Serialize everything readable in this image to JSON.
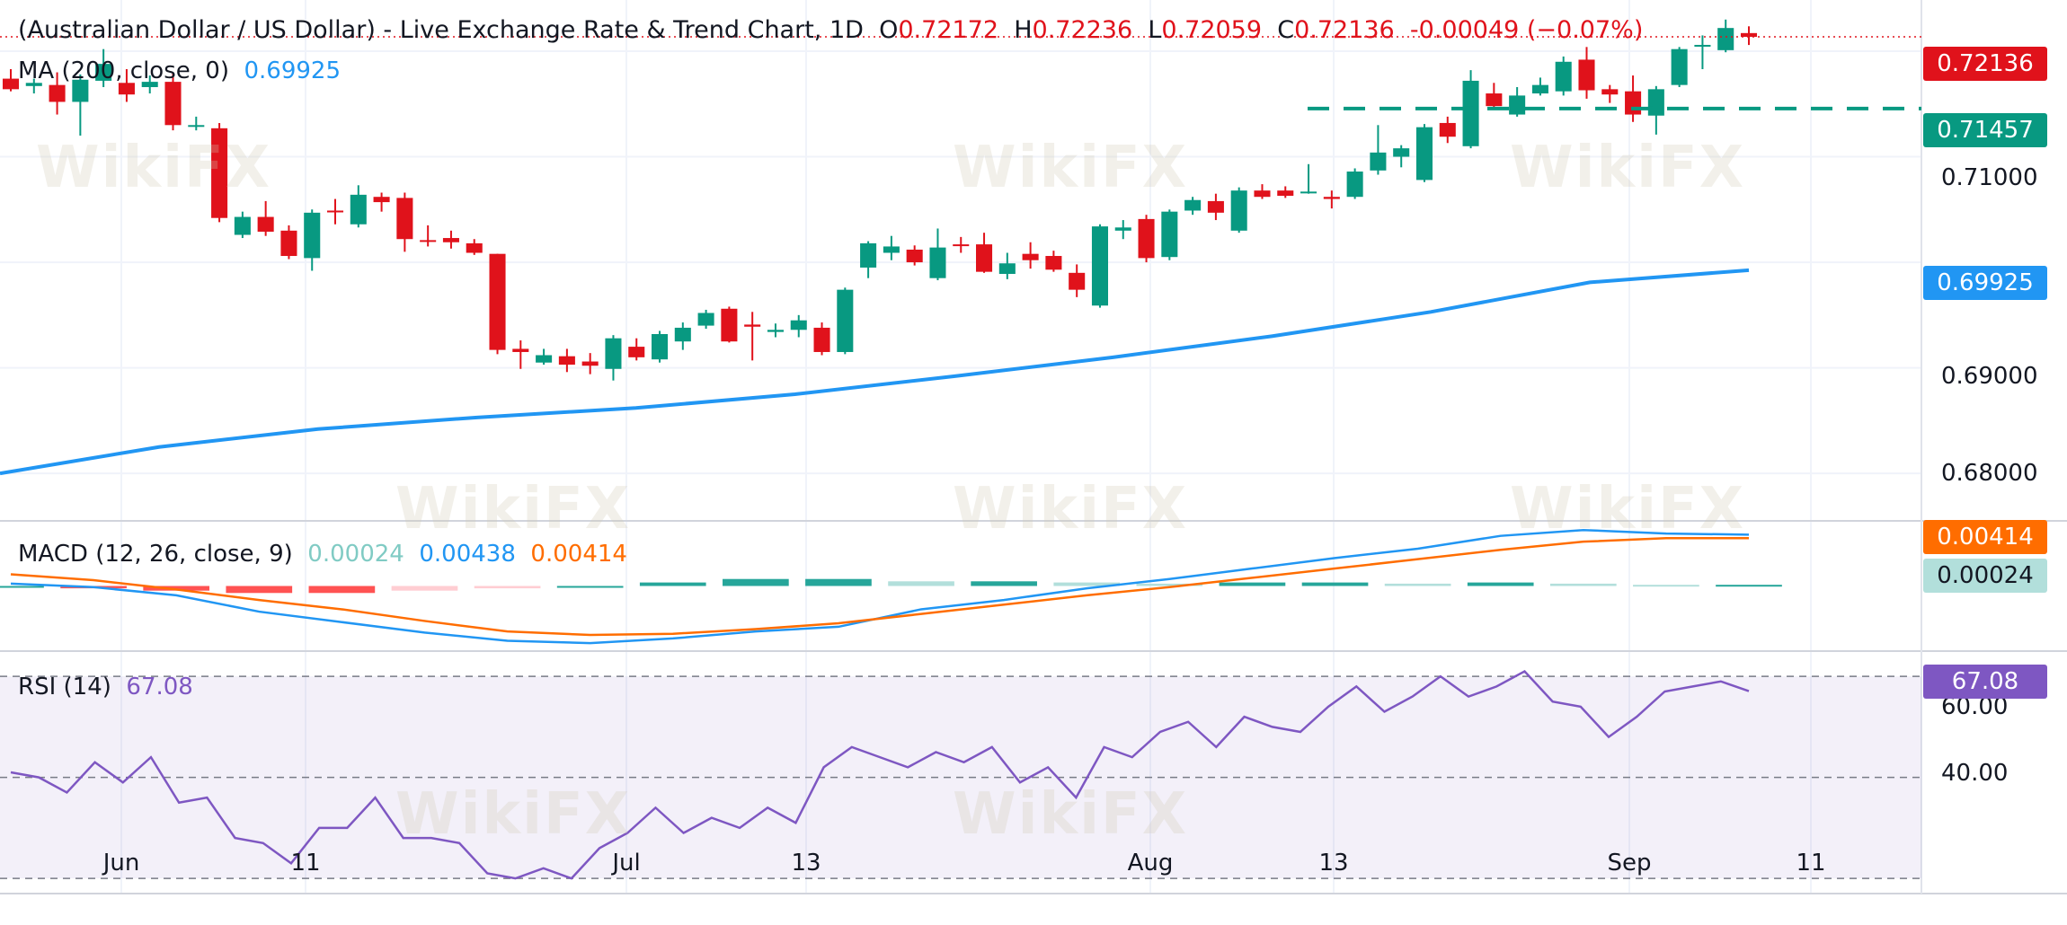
{
  "header": {
    "title": "(Australian Dollar / US Dollar) - Live Exchange Rate & Trend Chart, 1D",
    "o_label": "O",
    "o_value": "0.72172",
    "h_label": "H",
    "h_value": "0.72236",
    "l_label": "L",
    "l_value": "0.72059",
    "c_label": "C",
    "c_value": "0.72136",
    "change": "-0.00049 (−0.07%)"
  },
  "ma": {
    "label": "MA (200, close, 0)",
    "value": "0.69925"
  },
  "macd": {
    "label": "MACD (12, 26, close, 9)",
    "hist": "0.00024",
    "macd": "0.00438",
    "signal": "0.00414"
  },
  "rsi": {
    "label": "RSI (14)",
    "value": "67.08"
  },
  "price_tags": {
    "last": "0.72136",
    "level": "0.71457",
    "ma": "0.69925",
    "macd_signal": "0.00414",
    "macd_hist": "0.00024",
    "rsi": "67.08"
  },
  "watermark": "WikiFX",
  "colors": {
    "up": "#089981",
    "down": "#e0121b",
    "ma": "#2196f3",
    "macd": "#2196f3",
    "signal": "#ff6d00",
    "rsi": "#7e57c2",
    "level": "#089981"
  },
  "chart_data": [
    {
      "type": "candlestick",
      "title": "(Australian Dollar / US Dollar) - Live Exchange Rate & Trend Chart, 1D",
      "x_ticks": [
        "Jun",
        "11",
        "Jul",
        "13",
        "Aug",
        "13",
        "Sep",
        "11"
      ],
      "y_ticks": [
        "0.68000",
        "0.69000",
        "0.71000"
      ],
      "ylim": [
        0.6755,
        0.7223
      ],
      "horizontal_level": 0.71457,
      "last_price": 0.72136,
      "candles": [
        {
          "o": 0.7174,
          "h": 0.7183,
          "l": 0.7162,
          "c": 0.7164
        },
        {
          "o": 0.7167,
          "h": 0.7174,
          "l": 0.716,
          "c": 0.717
        },
        {
          "o": 0.7168,
          "h": 0.718,
          "l": 0.714,
          "c": 0.7152
        },
        {
          "o": 0.7152,
          "h": 0.7178,
          "l": 0.712,
          "c": 0.7173
        },
        {
          "o": 0.7172,
          "h": 0.7202,
          "l": 0.7166,
          "c": 0.7188
        },
        {
          "o": 0.717,
          "h": 0.7183,
          "l": 0.7152,
          "c": 0.7159
        },
        {
          "o": 0.7166,
          "h": 0.7177,
          "l": 0.716,
          "c": 0.7171
        },
        {
          "o": 0.7171,
          "h": 0.718,
          "l": 0.7125,
          "c": 0.713
        },
        {
          "o": 0.713,
          "h": 0.7138,
          "l": 0.7125,
          "c": 0.713
        },
        {
          "o": 0.7127,
          "h": 0.7132,
          "l": 0.7038,
          "c": 0.7042
        },
        {
          "o": 0.7026,
          "h": 0.7048,
          "l": 0.7023,
          "c": 0.7043
        },
        {
          "o": 0.7043,
          "h": 0.7058,
          "l": 0.7025,
          "c": 0.7029
        },
        {
          "o": 0.703,
          "h": 0.7035,
          "l": 0.7003,
          "c": 0.7006
        },
        {
          "o": 0.7004,
          "h": 0.705,
          "l": 0.6992,
          "c": 0.7047
        },
        {
          "o": 0.7049,
          "h": 0.706,
          "l": 0.7036,
          "c": 0.7048
        },
        {
          "o": 0.7036,
          "h": 0.7073,
          "l": 0.7033,
          "c": 0.7064
        },
        {
          "o": 0.7062,
          "h": 0.7066,
          "l": 0.7048,
          "c": 0.7057
        },
        {
          "o": 0.7061,
          "h": 0.7066,
          "l": 0.701,
          "c": 0.7022
        },
        {
          "o": 0.7021,
          "h": 0.7035,
          "l": 0.7015,
          "c": 0.702
        },
        {
          "o": 0.7023,
          "h": 0.703,
          "l": 0.7013,
          "c": 0.7019
        },
        {
          "o": 0.7018,
          "h": 0.7022,
          "l": 0.7007,
          "c": 0.7009
        },
        {
          "o": 0.7008,
          "h": 0.7008,
          "l": 0.6913,
          "c": 0.6917
        },
        {
          "o": 0.6918,
          "h": 0.6926,
          "l": 0.6899,
          "c": 0.6915
        },
        {
          "o": 0.6905,
          "h": 0.6918,
          "l": 0.6903,
          "c": 0.6912
        },
        {
          "o": 0.6911,
          "h": 0.6918,
          "l": 0.6896,
          "c": 0.6903
        },
        {
          "o": 0.6906,
          "h": 0.6914,
          "l": 0.6894,
          "c": 0.6902
        },
        {
          "o": 0.6899,
          "h": 0.6931,
          "l": 0.6888,
          "c": 0.6928
        },
        {
          "o": 0.692,
          "h": 0.6928,
          "l": 0.6907,
          "c": 0.691
        },
        {
          "o": 0.6908,
          "h": 0.6935,
          "l": 0.6905,
          "c": 0.6932
        },
        {
          "o": 0.6925,
          "h": 0.6943,
          "l": 0.6917,
          "c": 0.6938
        },
        {
          "o": 0.694,
          "h": 0.6955,
          "l": 0.6937,
          "c": 0.6952
        },
        {
          "o": 0.6956,
          "h": 0.6958,
          "l": 0.6924,
          "c": 0.6925
        },
        {
          "o": 0.6941,
          "h": 0.6953,
          "l": 0.6907,
          "c": 0.6939
        },
        {
          "o": 0.6934,
          "h": 0.6942,
          "l": 0.6929,
          "c": 0.6936
        },
        {
          "o": 0.6936,
          "h": 0.695,
          "l": 0.6929,
          "c": 0.6945
        },
        {
          "o": 0.6938,
          "h": 0.6943,
          "l": 0.6912,
          "c": 0.6915
        },
        {
          "o": 0.6915,
          "h": 0.6976,
          "l": 0.6913,
          "c": 0.6974
        },
        {
          "o": 0.6995,
          "h": 0.702,
          "l": 0.6985,
          "c": 0.7018
        },
        {
          "o": 0.7009,
          "h": 0.7025,
          "l": 0.7002,
          "c": 0.7015
        },
        {
          "o": 0.7012,
          "h": 0.7016,
          "l": 0.6997,
          "c": 0.7
        },
        {
          "o": 0.6985,
          "h": 0.7032,
          "l": 0.6983,
          "c": 0.7014
        },
        {
          "o": 0.7017,
          "h": 0.7024,
          "l": 0.7009,
          "c": 0.7016
        },
        {
          "o": 0.7017,
          "h": 0.7028,
          "l": 0.699,
          "c": 0.6991
        },
        {
          "o": 0.6989,
          "h": 0.7009,
          "l": 0.6984,
          "c": 0.6999
        },
        {
          "o": 0.7008,
          "h": 0.7019,
          "l": 0.6994,
          "c": 0.7002
        },
        {
          "o": 0.7006,
          "h": 0.7011,
          "l": 0.6991,
          "c": 0.6993
        },
        {
          "o": 0.699,
          "h": 0.6998,
          "l": 0.6967,
          "c": 0.6974
        },
        {
          "o": 0.6959,
          "h": 0.7036,
          "l": 0.6957,
          "c": 0.7034
        },
        {
          "o": 0.703,
          "h": 0.704,
          "l": 0.7022,
          "c": 0.7033
        },
        {
          "o": 0.7041,
          "h": 0.7045,
          "l": 0.7,
          "c": 0.7004
        },
        {
          "o": 0.7005,
          "h": 0.705,
          "l": 0.7002,
          "c": 0.7048
        },
        {
          "o": 0.7049,
          "h": 0.7062,
          "l": 0.7045,
          "c": 0.7059
        },
        {
          "o": 0.7058,
          "h": 0.7065,
          "l": 0.704,
          "c": 0.7047
        },
        {
          "o": 0.703,
          "h": 0.7071,
          "l": 0.7028,
          "c": 0.7068
        },
        {
          "o": 0.7068,
          "h": 0.7074,
          "l": 0.706,
          "c": 0.7062
        },
        {
          "o": 0.7068,
          "h": 0.7072,
          "l": 0.7061,
          "c": 0.7063
        },
        {
          "o": 0.7066,
          "h": 0.7093,
          "l": 0.7065,
          "c": 0.7067
        },
        {
          "o": 0.7062,
          "h": 0.7068,
          "l": 0.7051,
          "c": 0.706
        },
        {
          "o": 0.7062,
          "h": 0.7089,
          "l": 0.706,
          "c": 0.7086
        },
        {
          "o": 0.7087,
          "h": 0.713,
          "l": 0.7083,
          "c": 0.7104
        },
        {
          "o": 0.71,
          "h": 0.7111,
          "l": 0.709,
          "c": 0.7108
        },
        {
          "o": 0.7078,
          "h": 0.7131,
          "l": 0.7076,
          "c": 0.7128
        },
        {
          "o": 0.7132,
          "h": 0.7138,
          "l": 0.7113,
          "c": 0.7119
        },
        {
          "o": 0.711,
          "h": 0.7182,
          "l": 0.7108,
          "c": 0.7172
        },
        {
          "o": 0.716,
          "h": 0.717,
          "l": 0.7145,
          "c": 0.7148
        },
        {
          "o": 0.714,
          "h": 0.7166,
          "l": 0.7138,
          "c": 0.7158
        },
        {
          "o": 0.716,
          "h": 0.7175,
          "l": 0.7158,
          "c": 0.7168
        },
        {
          "o": 0.7162,
          "h": 0.7195,
          "l": 0.7158,
          "c": 0.719
        },
        {
          "o": 0.7192,
          "h": 0.7204,
          "l": 0.7155,
          "c": 0.7163
        },
        {
          "o": 0.7164,
          "h": 0.7168,
          "l": 0.7151,
          "c": 0.7159
        },
        {
          "o": 0.7162,
          "h": 0.7177,
          "l": 0.7133,
          "c": 0.714
        },
        {
          "o": 0.7139,
          "h": 0.7167,
          "l": 0.7121,
          "c": 0.7164
        },
        {
          "o": 0.7168,
          "h": 0.7204,
          "l": 0.7166,
          "c": 0.7202
        },
        {
          "o": 0.7205,
          "h": 0.7215,
          "l": 0.7183,
          "c": 0.7206
        },
        {
          "o": 0.7201,
          "h": 0.723,
          "l": 0.7199,
          "c": 0.7222
        },
        {
          "o": 0.72172,
          "h": 0.72236,
          "l": 0.72059,
          "c": 0.72136
        }
      ],
      "ma200": [
        0.68,
        0.6825,
        0.6842,
        0.6853,
        0.6862,
        0.6875,
        0.6892,
        0.691,
        0.693,
        0.6953,
        0.6981,
        0.69925
      ]
    },
    {
      "type": "line",
      "title": "MACD (12, 26, close, 9)",
      "y_ticks": [],
      "series": [
        {
          "name": "MACD",
          "values": [
            0.0002,
            -0.0001,
            -0.0008,
            -0.0022,
            -0.0031,
            -0.004,
            -0.0047,
            -0.0049,
            -0.0045,
            -0.0039,
            -0.0035,
            -0.002,
            -0.0012,
            -0.0002,
            0.0006,
            0.0015,
            0.0024,
            0.0032,
            0.0043,
            0.0048,
            0.0045,
            0.0044
          ]
        },
        {
          "name": "Signal",
          "values": [
            0.001,
            0.0005,
            -0.0003,
            -0.0012,
            -0.002,
            -0.003,
            -0.0039,
            -0.0042,
            -0.0041,
            -0.0037,
            -0.0032,
            -0.0024,
            -0.0016,
            -0.0008,
            -0.0001,
            0.0007,
            0.0015,
            0.0023,
            0.0031,
            0.0038,
            0.0041,
            0.0041
          ]
        },
        {
          "name": "Histogram",
          "values": [
            0.0,
            -0.0002,
            -0.0004,
            -0.0006,
            -0.0006,
            -0.0004,
            -0.0002,
            0.0,
            0.0003,
            0.0006,
            0.0006,
            0.0004,
            0.0004,
            0.0003,
            0.0002,
            0.0003,
            0.0003,
            0.0002,
            0.0003,
            0.0002,
            0.0001,
            0.0001
          ]
        }
      ]
    },
    {
      "type": "line",
      "title": "RSI (14)",
      "y_ticks": [
        "60.00",
        "40.00"
      ],
      "ylim": [
        30,
        72
      ],
      "bands": [
        70,
        50,
        30
      ],
      "series": [
        {
          "name": "RSI",
          "values": [
            51,
            50,
            47,
            53,
            49,
            54,
            45,
            46,
            38,
            37,
            33,
            40,
            40,
            46,
            38,
            38,
            37,
            31,
            30,
            32,
            30,
            36,
            39,
            44,
            39,
            42,
            40,
            44,
            41,
            52,
            56,
            54,
            52,
            55,
            53,
            56,
            49,
            52,
            46,
            56,
            54,
            59,
            61,
            56,
            62,
            60,
            59,
            64,
            68,
            63,
            66,
            70,
            66,
            68,
            71,
            65,
            64,
            58,
            62,
            67,
            68,
            69,
            67.08
          ]
        }
      ]
    }
  ]
}
